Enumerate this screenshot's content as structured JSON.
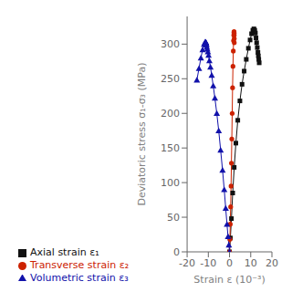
{
  "chart_data": {
    "type": "line",
    "xlabel": "Strain ε (10⁻³)",
    "ylabel": "Deviatoric stress σ₁-σ₃ (MPa)",
    "xlim": [
      -20,
      20
    ],
    "ylim": [
      0,
      340
    ],
    "xticks": [
      -20,
      -10,
      0,
      10,
      20
    ],
    "yticks": [
      0,
      50,
      100,
      150,
      200,
      250,
      300
    ],
    "grid": false,
    "legend": "bottom",
    "series": [
      {
        "name": "Axial strain ε₁",
        "color": "#111111",
        "marker": "square",
        "x": [
          0,
          0.4,
          0.9,
          1.5,
          2.2,
          3.0,
          3.9,
          4.9,
          5.9,
          6.9,
          7.9,
          8.9,
          9.7,
          10.4,
          11.0,
          11.5,
          11.9,
          12.2,
          12.5,
          12.8,
          13.1,
          13.4,
          13.6,
          13.8,
          14.0
        ],
        "values": [
          0,
          20,
          48,
          85,
          122,
          157,
          190,
          218,
          242,
          261,
          278,
          294,
          306,
          315,
          320,
          322,
          320,
          316,
          309,
          302,
          295,
          288,
          283,
          278,
          273
        ]
      },
      {
        "name": "Transverse strain ε₂",
        "color": "#cc2200",
        "marker": "circle",
        "x": [
          0,
          0.18,
          0.36,
          0.54,
          0.72,
          0.9,
          1.08,
          1.26,
          1.44,
          1.62,
          1.78,
          1.9,
          2.0,
          2.08,
          2.14,
          2.18,
          2.21,
          2.23,
          2.24
        ],
        "values": [
          0,
          18,
          40,
          65,
          95,
          128,
          163,
          200,
          237,
          268,
          290,
          305,
          313,
          317,
          318,
          316,
          313,
          308,
          302
        ]
      },
      {
        "name": "Volumetric strain ε₃",
        "color": "#1111aa",
        "marker": "triangle",
        "x": [
          0,
          -0.3,
          -0.7,
          -1.2,
          -1.8,
          -2.5,
          -3.3,
          -4.2,
          -5.1,
          -6.0,
          -6.9,
          -7.7,
          -8.4,
          -9.0,
          -9.5,
          -9.9,
          -10.2,
          -10.5,
          -10.7,
          -10.9,
          -11.0,
          -11.1,
          -11.2,
          -11.5,
          -12.0,
          -12.7,
          -13.5,
          -14.4,
          -15.4
        ],
        "values": [
          0,
          10,
          22,
          40,
          63,
          90,
          118,
          147,
          175,
          200,
          222,
          240,
          255,
          267,
          276,
          284,
          289,
          293,
          296,
          299,
          301,
          302,
          303,
          303,
          300,
          292,
          280,
          265,
          248
        ]
      }
    ]
  }
}
